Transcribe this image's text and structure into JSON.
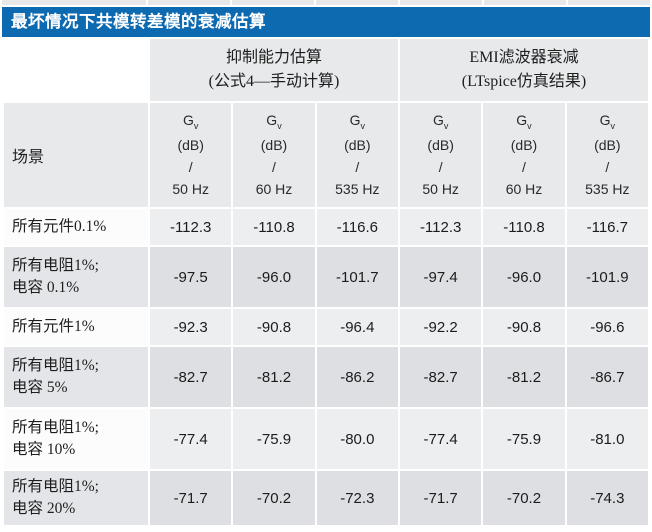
{
  "title": "最坏情况下共模转差模的衰减估算",
  "scenario_header": "场景",
  "groups": [
    {
      "line1": "抑制能力估算",
      "line2": "(公式4—手动计算)"
    },
    {
      "line1": "EMI滤波器衰减",
      "line2": "(LTspice仿真结果)"
    }
  ],
  "gain": {
    "symbol": "G",
    "sub": "v",
    "unit": "(dB)",
    "slash": "/"
  },
  "freqs": [
    "50 Hz",
    "60 Hz",
    "535 Hz",
    "50 Hz",
    "60 Hz",
    "535 Hz"
  ],
  "rows": [
    {
      "scenario": "所有元件0.1%",
      "values": [
        "-112.3",
        "-110.8",
        "-116.6",
        "-112.3",
        "-110.8",
        "-116.7"
      ]
    },
    {
      "scenario": "所有电阻1%;\n电容 0.1%",
      "values": [
        "-97.5",
        "-96.0",
        "-101.7",
        "-97.4",
        "-96.0",
        "-101.9"
      ]
    },
    {
      "scenario": "所有元件1%",
      "values": [
        "-92.3",
        "-90.8",
        "-96.4",
        "-92.2",
        "-90.8",
        "-96.6"
      ]
    },
    {
      "scenario": "所有电阻1%;\n电容 5%",
      "values": [
        "-82.7",
        "-81.2",
        "-86.2",
        "-82.7",
        "-81.2",
        "-86.7"
      ]
    },
    {
      "scenario": "所有电阻1%;\n电容 10%",
      "values": [
        "-77.4",
        "-75.9",
        "-80.0",
        "-77.4",
        "-75.9",
        "-81.0"
      ]
    },
    {
      "scenario": "所有电阻1%;\n电容 20%",
      "values": [
        "-71.7",
        "-70.2",
        "-72.3",
        "-71.7",
        "-70.2",
        "-74.3"
      ]
    }
  ],
  "colors": {
    "header_blue": "#0E6AB0",
    "cell_gray": "#E8E9EB",
    "row_light": "#EDEEF0",
    "row_dark": "#DDDFE3",
    "row_scen_light": "#FCFCFD",
    "row_scen_dark": "#E4E5E9"
  }
}
